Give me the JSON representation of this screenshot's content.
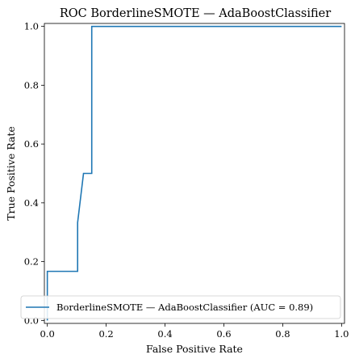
{
  "chart_data": {
    "type": "line",
    "title": "ROC BorderlineSMOTE — AdaBoostClassifier",
    "xlabel": "False Positive Rate",
    "ylabel": "True Positive Rate",
    "xlim": [
      -0.01,
      1.01
    ],
    "ylim": [
      -0.01,
      1.01
    ],
    "xticks": [
      0.0,
      0.2,
      0.4,
      0.6,
      0.8,
      1.0
    ],
    "xtick_labels": [
      "0.0",
      "0.2",
      "0.4",
      "0.6",
      "0.8",
      "1.0"
    ],
    "yticks": [
      0.0,
      0.2,
      0.4,
      0.6,
      0.8,
      1.0
    ],
    "ytick_labels": [
      "0.0",
      "0.2",
      "0.4",
      "0.6",
      "0.8",
      "1.0"
    ],
    "grid": false,
    "legend_position": "lower-right",
    "series": [
      {
        "name": "BorderlineSMOTE — AdaBoostClassifier (AUC = 0.89)",
        "color": "#1f77b4",
        "x": [
          0.0,
          0.0,
          0.0,
          0.103,
          0.103,
          0.123,
          0.151,
          0.151,
          1.0
        ],
        "y": [
          0.0,
          0.167,
          0.167,
          0.167,
          0.333,
          0.5,
          0.5,
          1.0,
          1.0
        ]
      }
    ]
  }
}
